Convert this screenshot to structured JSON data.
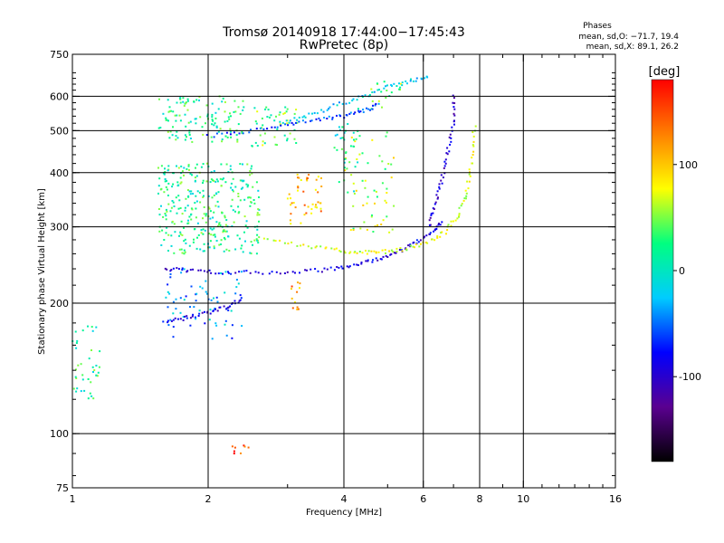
{
  "chart_data": {
    "type": "scatter",
    "title": "Tromsø 20140918 17:44:00−17:45:43",
    "subtitle": "RwPretec (8p)",
    "xlabel": "Frequency [MHz]",
    "ylabel": "Stationary phase Virtual Height [km]",
    "x_scale": "log",
    "y_scale": "log",
    "xlim": [
      1,
      16
    ],
    "ylim": [
      75,
      750
    ],
    "x_ticks": [
      1,
      2,
      4,
      6,
      8,
      10,
      16
    ],
    "y_ticks": [
      75,
      100,
      200,
      300,
      400,
      500,
      600,
      750
    ],
    "x_gridlines": [
      2,
      4,
      6,
      8,
      10
    ],
    "y_gridlines": [
      100,
      200,
      300,
      400,
      500,
      600
    ],
    "grid": true,
    "phase_stats": {
      "heading": "Phases",
      "o_line": "mean, sd,O: −71.7, 19.4",
      "x_line": "mean, sd,X:  89.1, 26.2"
    },
    "colorbar": {
      "label": "[deg]",
      "ticks": [
        100,
        0,
        -100
      ],
      "range": [
        -180,
        180
      ],
      "colors": [
        "#000000",
        "#5a0090",
        "#0000ff",
        "#00ccff",
        "#00ff80",
        "#ffff00",
        "#ff8000",
        "#ff0000"
      ]
    },
    "echo_traces": [
      {
        "x": [
          1.6,
          1.8,
          2.1,
          2.6,
          3.2,
          3.8,
          4.3,
          4.8,
          5.3,
          5.8,
          6.3,
          6.6
        ],
        "y": [
          240,
          238,
          236,
          235,
          236,
          240,
          246,
          254,
          263,
          276,
          292,
          310
        ],
        "phase": -90
      },
      {
        "x": [
          2.6,
          3.2,
          3.8,
          4.3,
          4.8,
          5.4,
          6.1,
          6.7,
          7.2,
          7.5,
          7.7,
          7.8
        ],
        "y": [
          285,
          272,
          265,
          262,
          262,
          266,
          275,
          292,
          320,
          365,
          430,
          520
        ],
        "phase": 70
      },
      {
        "x": [
          6.2,
          6.4,
          6.6,
          6.8,
          7.0,
          7.0
        ],
        "y": [
          300,
          340,
          390,
          450,
          520,
          610
        ],
        "phase": -100
      },
      {
        "x": [
          2.0,
          2.5,
          3.0,
          3.5,
          4.0,
          4.4,
          4.8
        ],
        "y": [
          485,
          500,
          515,
          530,
          540,
          555,
          575
        ],
        "phase": -60
      },
      {
        "x": [
          1.6,
          1.8,
          2.0,
          2.2,
          2.4
        ],
        "y": [
          182,
          185,
          190,
          196,
          205
        ],
        "phase": -90
      },
      {
        "x": [
          2.9,
          3.3,
          3.8,
          4.4,
          5.0,
          5.6,
          6.2
        ],
        "y": [
          520,
          540,
          570,
          600,
          630,
          650,
          670
        ],
        "phase": -20
      }
    ],
    "echo_clusters": [
      {
        "x": [
          1.55,
          2.6
        ],
        "y": [
          260,
          420
        ],
        "phase": 20,
        "count": 330
      },
      {
        "x": [
          1.55,
          2.4
        ],
        "y": [
          470,
          600
        ],
        "phase": 20,
        "count": 120
      },
      {
        "x": [
          2.5,
          3.2
        ],
        "y": [
          460,
          580
        ],
        "phase": 40,
        "count": 50
      },
      {
        "x": [
          1.6,
          2.4
        ],
        "y": [
          165,
          240
        ],
        "phase": -40,
        "count": 70
      },
      {
        "x": [
          3.0,
          3.6
        ],
        "y": [
          300,
          400
        ],
        "phase": 110,
        "count": 45
      },
      {
        "x": [
          4.0,
          5.2
        ],
        "y": [
          290,
          500
        ],
        "phase": 60,
        "count": 60
      },
      {
        "x": [
          3.8,
          4.4
        ],
        "y": [
          360,
          520
        ],
        "phase": 10,
        "count": 30
      },
      {
        "x": [
          4.3,
          5.6
        ],
        "y": [
          560,
          650
        ],
        "phase": 40,
        "count": 20
      },
      {
        "x": [
          1.0,
          1.15
        ],
        "y": [
          120,
          180
        ],
        "phase": 20,
        "count": 40
      },
      {
        "x": [
          3.05,
          3.2
        ],
        "y": [
          190,
          225
        ],
        "phase": 120,
        "count": 12
      },
      {
        "x": [
          2.25,
          2.6
        ],
        "y": [
          90,
          94
        ],
        "phase": 150,
        "count": 8
      }
    ]
  }
}
